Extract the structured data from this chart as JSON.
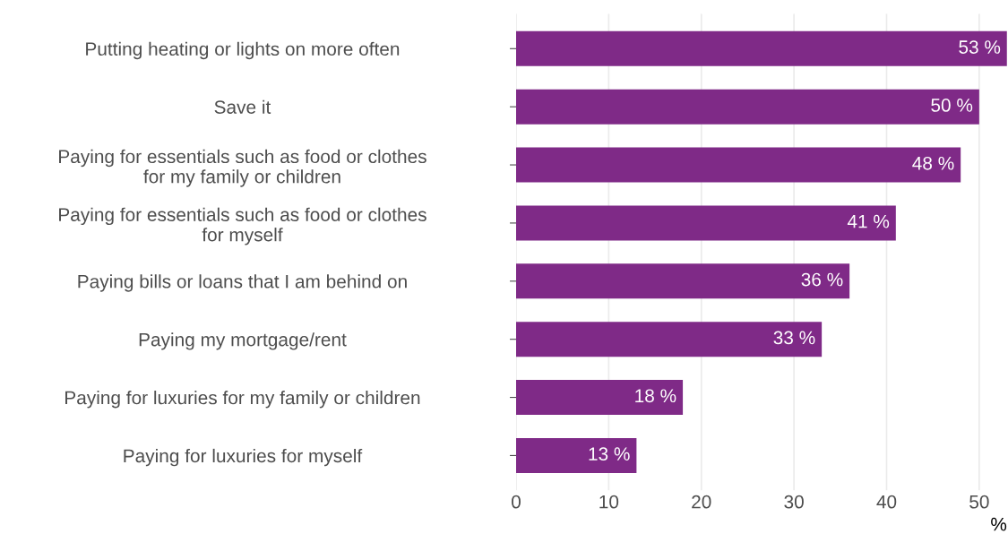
{
  "chart_data": {
    "type": "bar",
    "orientation": "horizontal",
    "categories": [
      "Putting heating or lights on more often",
      "Save it",
      "Paying for essentials such as food or clothes\nfor my family or children",
      "Paying for essentials such as food or clothes\nfor myself",
      "Paying bills or loans that I am behind on",
      "Paying my mortgage/rent",
      "Paying for luxuries for my family or children",
      "Paying for luxuries for myself"
    ],
    "values": [
      53,
      50,
      48,
      41,
      36,
      33,
      18,
      13
    ],
    "value_labels": [
      "53 %",
      "50 %",
      "48 %",
      "41 %",
      "36 %",
      "33 %",
      "18 %",
      "13 %"
    ],
    "color": "#7f2a87",
    "xlabel": "%",
    "xlim": [
      0,
      53
    ],
    "xticks": [
      0,
      10,
      20,
      30,
      40,
      50
    ],
    "grid": "x"
  }
}
